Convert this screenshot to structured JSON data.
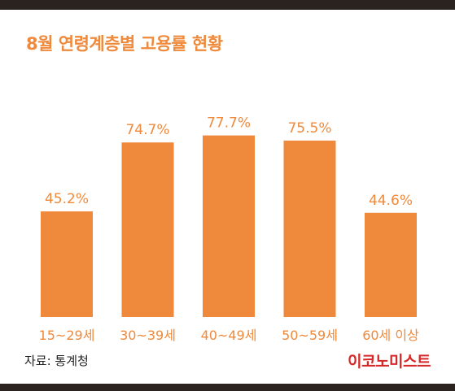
{
  "page": {
    "source": "자료: 통계청",
    "brand": "이코노미스트"
  },
  "colors": {
    "bar": "#ef8a3c",
    "label": "#ef8a3c",
    "title": "#ef8a3c",
    "brand": "#d62828"
  },
  "chart_data": {
    "type": "bar",
    "title": "8월 연령계층별 고용률 현황",
    "categories": [
      "15~29세",
      "30~39세",
      "40~49세",
      "50~59세",
      "60세 이상"
    ],
    "values": [
      45.2,
      74.7,
      77.7,
      75.5,
      44.6
    ],
    "value_labels": [
      "45.2%",
      "74.7%",
      "77.7%",
      "75.5%",
      "44.6%"
    ],
    "xlabel": "",
    "ylabel": "",
    "ylim": [
      0,
      100
    ],
    "grid": false,
    "legend": "none"
  }
}
